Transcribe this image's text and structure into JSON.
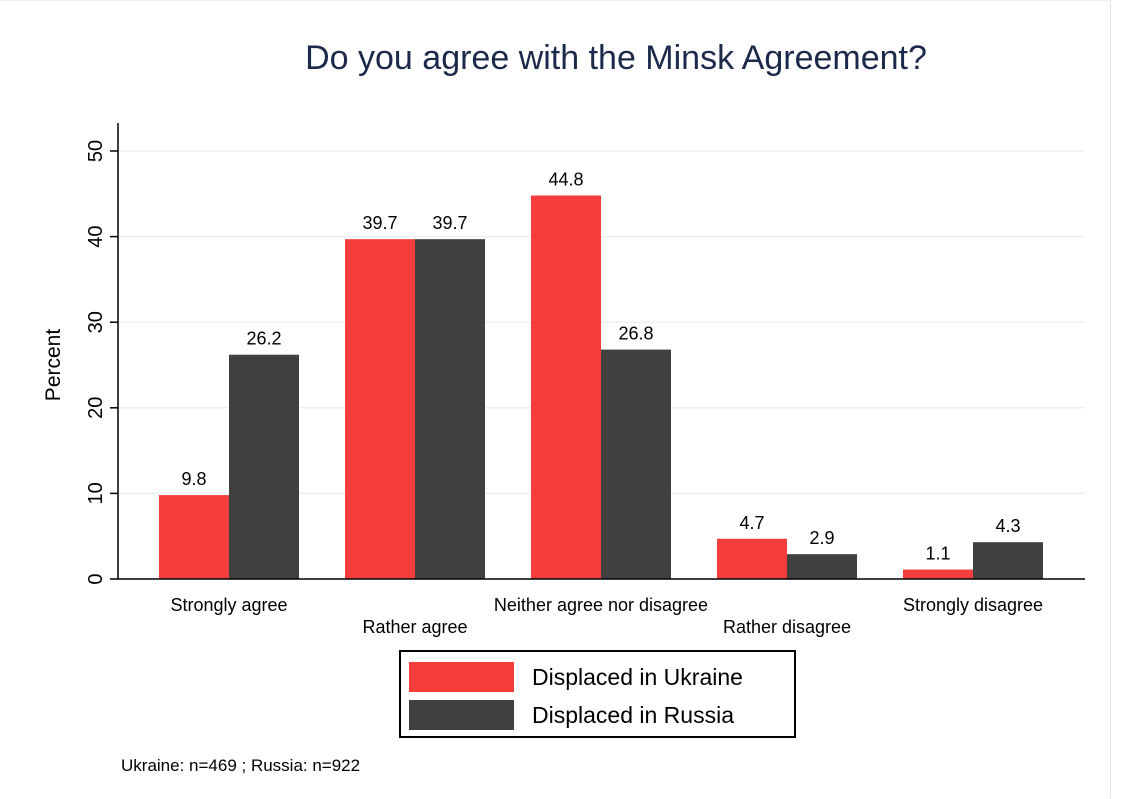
{
  "chart_data": {
    "type": "bar",
    "title": "Do you agree with the Minsk Agreement?",
    "ylabel": "Percent",
    "xlabel": "",
    "ylim": [
      0,
      50
    ],
    "yticks": [
      0,
      10,
      20,
      30,
      40,
      50
    ],
    "grid": true,
    "categories": [
      "Strongly agree",
      "Rather agree",
      "Neither agree nor disagree",
      "Rather disagree",
      "Strongly disagree"
    ],
    "series": [
      {
        "name": "Displaced in Ukraine",
        "color": "#f53e3c",
        "values": [
          9.8,
          39.7,
          44.8,
          4.7,
          1.1
        ]
      },
      {
        "name": "Displaced in Russia",
        "color": "#404040",
        "values": [
          26.2,
          39.7,
          26.8,
          2.9,
          4.3
        ]
      }
    ],
    "value_labels": [
      [
        "9.8",
        "39.7",
        "44.8",
        "4.7",
        "1.1"
      ],
      [
        "26.2",
        "39.7",
        "26.8",
        "2.9",
        "4.3"
      ]
    ],
    "legend_position": "bottom",
    "note": "Ukraine: n=469 ; Russia: n=922"
  }
}
